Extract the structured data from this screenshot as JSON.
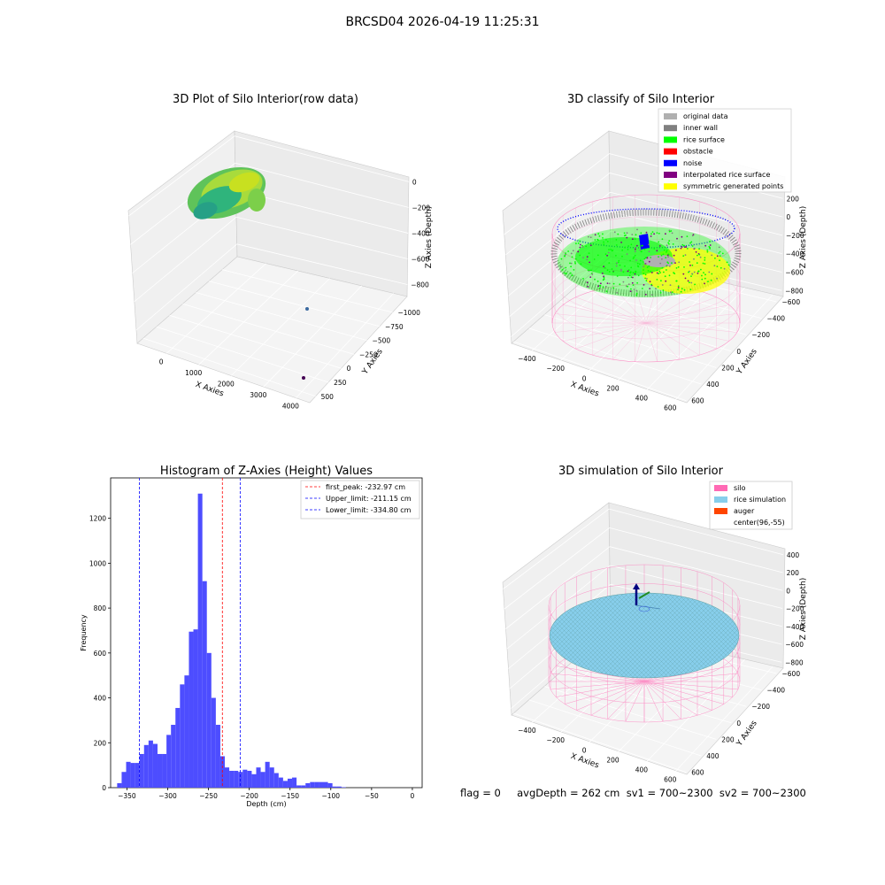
{
  "figure": {
    "suptitle": "BRCSD04 2026-04-19 11:25:31",
    "status_line": "flag = 0     avgDepth = 262 cm  sv1 = 700~2300  sv2 = 700~2300"
  },
  "colors": {
    "original": "#b0b0b0",
    "inner_wall": "#808080",
    "rice_surface": "#00ff00",
    "obstacle": "#ff0000",
    "noise": "#0000ff",
    "interpolated": "#800080",
    "symmetric": "#ffff00",
    "silo": "#ff69b4",
    "rice_sim": "#87ceeb",
    "auger": "#ff4500",
    "hist_bar": "#4d4dff",
    "peak_line": "#ff0000",
    "limit_line": "#0000ff"
  },
  "chart_data": [
    {
      "type": "scatter",
      "title": "3D Plot of Silo Interior(row data)",
      "xlabel": "X Axies",
      "ylabel": "Y Axies",
      "zlabel": "Z Axies (Depth)",
      "xticks": [
        "0",
        "1000",
        "2000",
        "3000",
        "4000"
      ],
      "yticks": [
        "−1000",
        "−750",
        "−500",
        "−250",
        "0",
        "250",
        "500"
      ],
      "zticks": [
        "0",
        "−200",
        "−400",
        "−600",
        "−800"
      ]
    },
    {
      "type": "scatter",
      "title": "3D classify of Silo Interior",
      "xlabel": "X Axies",
      "ylabel": "Y Axies",
      "zlabel": "Z Axies (Depth)",
      "xticks": [
        "−400",
        "−200",
        "0",
        "200",
        "400",
        "600"
      ],
      "yticks": [
        "−600",
        "−400",
        "−200",
        "0",
        "200",
        "400",
        "600"
      ],
      "zticks": [
        "200",
        "0",
        "−200",
        "−400",
        "−600",
        "−800"
      ],
      "legend": [
        "original data",
        "inner wall",
        "rice surface",
        "obstacle",
        "noise",
        "interpolated rice surface",
        "symmetric generated points"
      ],
      "legend_position": "top-right"
    },
    {
      "type": "bar",
      "title": "Histogram of Z-Axies (Height) Values",
      "xlabel": "Depth (cm)",
      "ylabel": "Frequency",
      "xlim": [
        -370,
        12
      ],
      "ylim": [
        0,
        1380
      ],
      "xticks": [
        -350,
        -300,
        -250,
        -200,
        -150,
        -100,
        -50,
        0
      ],
      "yticks": [
        0,
        200,
        400,
        600,
        800,
        1000,
        1200
      ],
      "bin_start": -362,
      "bin_width": 5.5,
      "values": [
        20,
        70,
        115,
        110,
        110,
        150,
        190,
        210,
        195,
        150,
        150,
        235,
        280,
        355,
        460,
        500,
        695,
        705,
        1310,
        920,
        600,
        400,
        280,
        140,
        90,
        75,
        75,
        70,
        80,
        75,
        60,
        90,
        70,
        115,
        90,
        65,
        45,
        30,
        40,
        45,
        10,
        10,
        20,
        25,
        25,
        25,
        25,
        20,
        5,
        5,
        2
      ],
      "vlines": [
        {
          "label": "first_peak: -232.97 cm",
          "x": -232.97,
          "color": "#ff0000"
        },
        {
          "label": "Upper_limit: -211.15 cm",
          "x": -211.15,
          "color": "#0000ff"
        },
        {
          "label": "Lower_limit: -334.80 cm",
          "x": -334.8,
          "color": "#0000ff"
        }
      ],
      "legend_position": "top-right"
    },
    {
      "type": "scatter",
      "title": "3D simulation of Silo Interior",
      "xlabel": "X Axies",
      "ylabel": "Y Axies",
      "zlabel": "Z Axies (Depth)",
      "xticks": [
        "−400",
        "−200",
        "0",
        "200",
        "400",
        "600"
      ],
      "yticks": [
        "−600",
        "−400",
        "−200",
        "0",
        "200",
        "400",
        "600"
      ],
      "zticks": [
        "400",
        "200",
        "0",
        "−200",
        "−400",
        "−600",
        "−800"
      ],
      "legend": [
        "silo",
        "rice simulation",
        "auger",
        "center(96,-55)"
      ],
      "legend_position": "top-right"
    }
  ]
}
